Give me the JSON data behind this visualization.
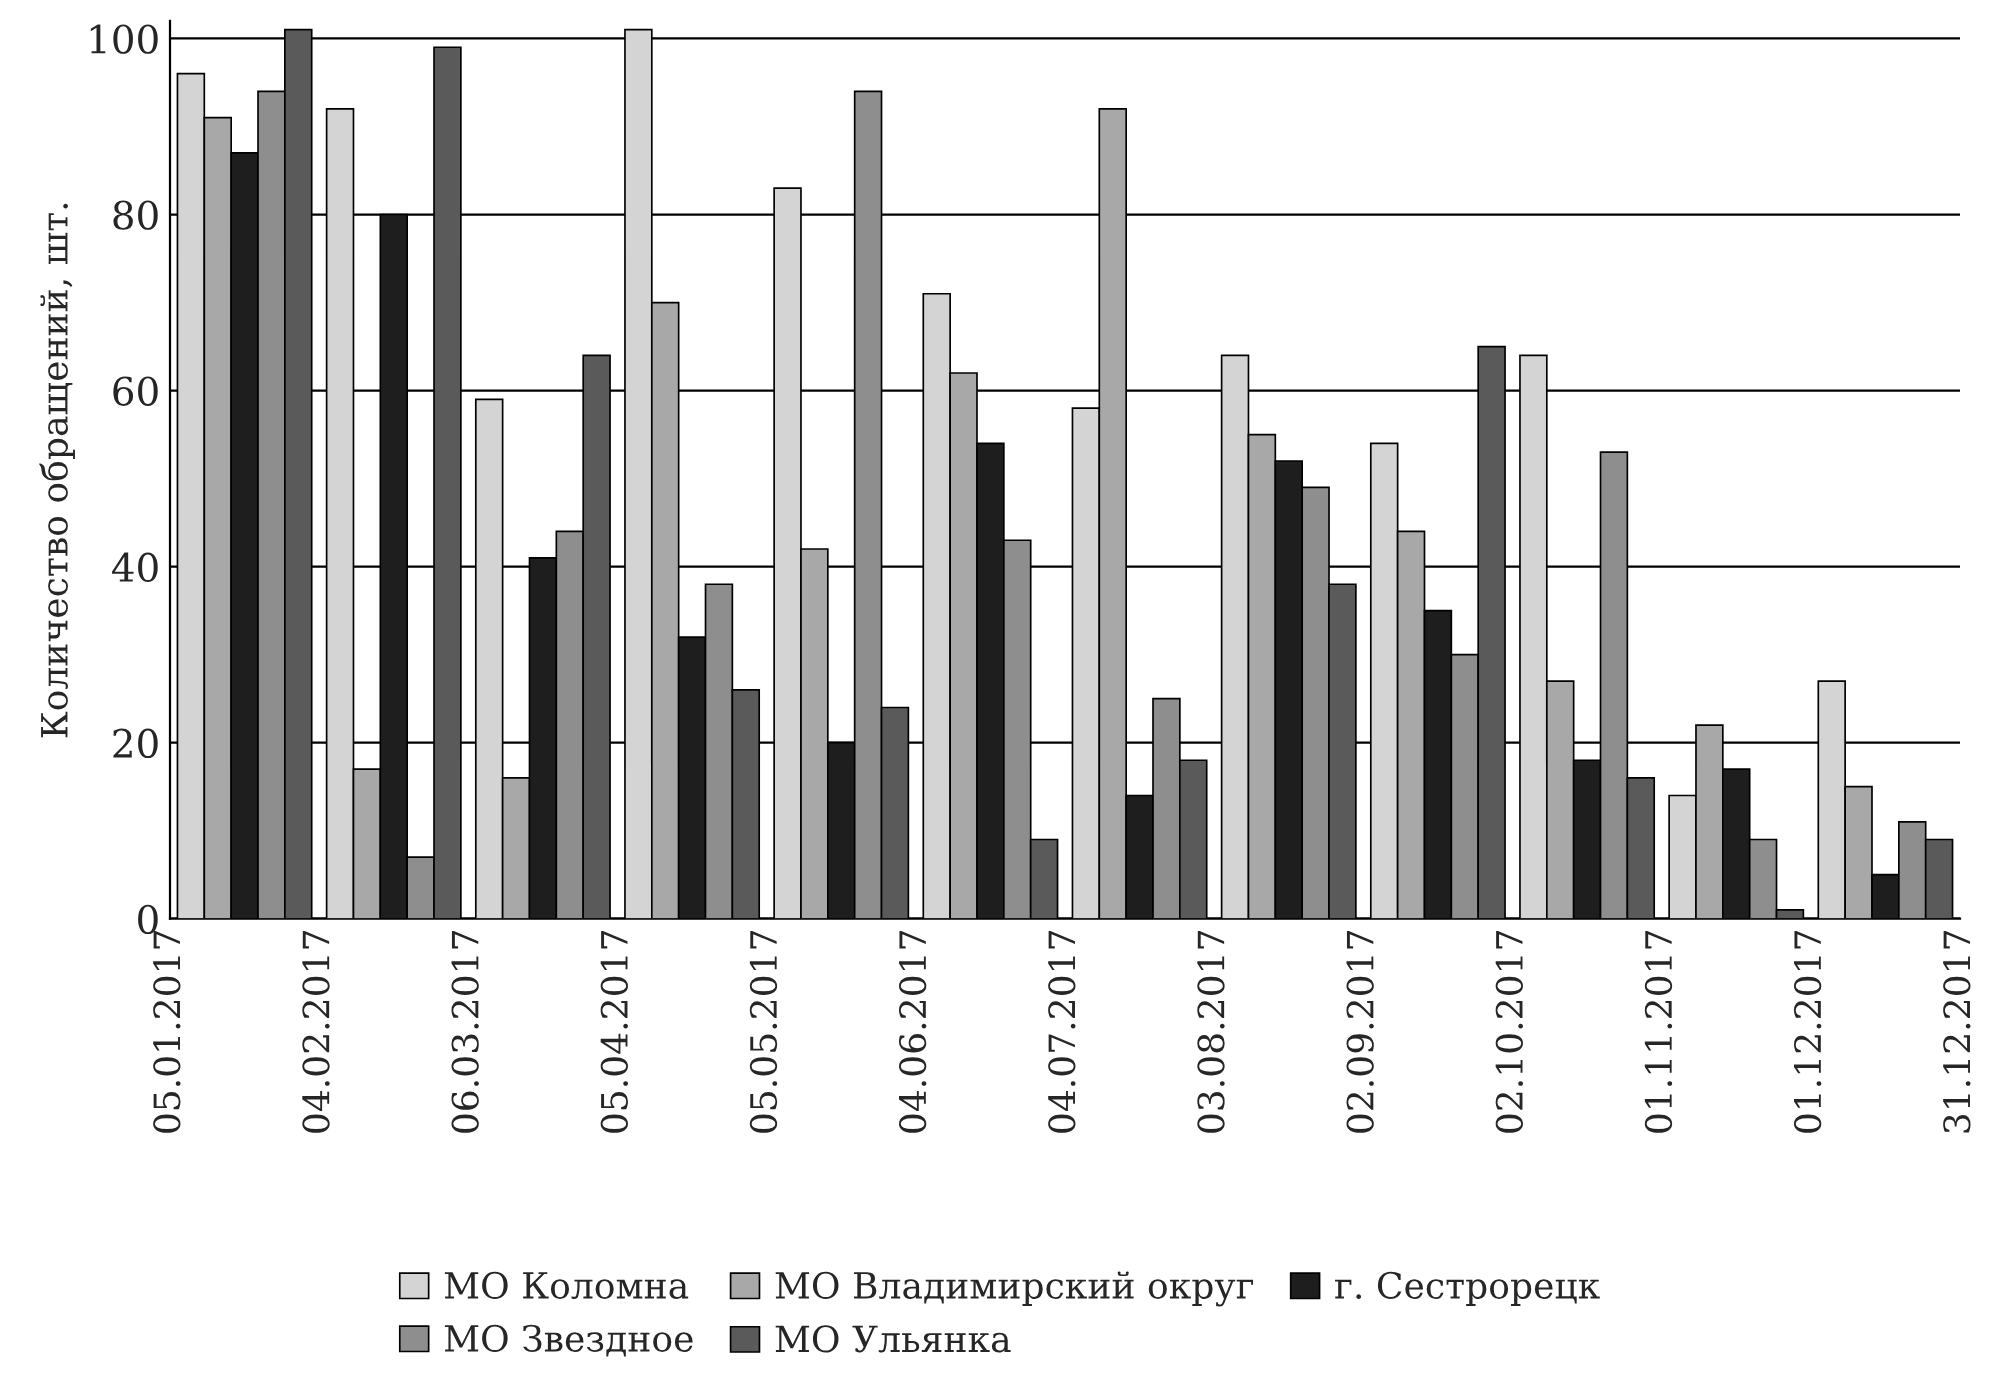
{
  "chart_data": {
    "type": "bar",
    "ylabel": "Количество обращений, шт.",
    "x": [
      "2017-01-20",
      "2017-02-19",
      "2017-03-21",
      "2017-04-20",
      "2017-05-20",
      "2017-06-19",
      "2017-07-19",
      "2017-08-18",
      "2017-09-17",
      "2017-10-17",
      "2017-11-16",
      "2017-12-16"
    ],
    "series": [
      {
        "name": "МО Коломна",
        "color": "#d4d4d4",
        "values": [
          96,
          92,
          59,
          101,
          83,
          71,
          58,
          64,
          54,
          64,
          14,
          27
        ]
      },
      {
        "name": "МО Владимирский округ",
        "color": "#a8a8a8",
        "values": [
          91,
          17,
          16,
          70,
          42,
          62,
          92,
          55,
          44,
          27,
          22,
          15
        ]
      },
      {
        "name": "г. Сестрорецк",
        "color": "#1e1e1e",
        "values": [
          87,
          80,
          41,
          32,
          20,
          54,
          14,
          52,
          35,
          18,
          17,
          5
        ]
      },
      {
        "name": "МО Звездное",
        "color": "#8e8e8e",
        "values": [
          94,
          7,
          44,
          38,
          94,
          43,
          25,
          49,
          30,
          53,
          9,
          11
        ]
      },
      {
        "name": "МО Ульянка",
        "color": "#5a5a5a",
        "values": [
          101,
          99,
          64,
          26,
          24,
          9,
          18,
          38,
          65,
          16,
          1,
          9
        ]
      }
    ],
    "xlim": [
      "2017-01-05",
      "2017-12-31"
    ],
    "xticks": [
      {
        "value": "2017-01-05",
        "label": "05.01.2017"
      },
      {
        "value": "2017-02-04",
        "label": "04.02.2017"
      },
      {
        "value": "2017-03-06",
        "label": "06.03.2017"
      },
      {
        "value": "2017-04-05",
        "label": "05.04.2017"
      },
      {
        "value": "2017-05-05",
        "label": "05.05.2017"
      },
      {
        "value": "2017-06-04",
        "label": "04.06.2017"
      },
      {
        "value": "2017-07-04",
        "label": "04.07.2017"
      },
      {
        "value": "2017-08-03",
        "label": "03.08.2017"
      },
      {
        "value": "2017-09-02",
        "label": "02.09.2017"
      },
      {
        "value": "2017-10-02",
        "label": "02.10.2017"
      },
      {
        "value": "2017-11-01",
        "label": "01.11.2017"
      },
      {
        "value": "2017-12-01",
        "label": "01.12.2017"
      },
      {
        "value": "2017-12-31",
        "label": "31.12.2017"
      }
    ],
    "ylim": [
      0,
      102
    ],
    "yticks": [
      0,
      20,
      40,
      60,
      80,
      100
    ],
    "grid": "y",
    "legend": "bottom"
  }
}
